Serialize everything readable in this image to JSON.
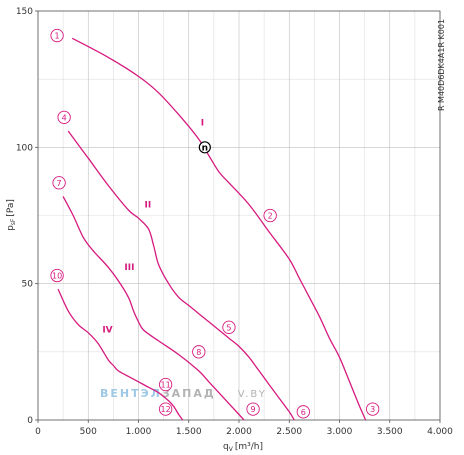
{
  "chart_data": {
    "type": "line",
    "xlabel_main": "q",
    "xlabel_sub": "V",
    "xlabel_unit": "[m³/h]",
    "ylabel_main": "p",
    "ylabel_sub": "sF",
    "ylabel_unit": "[Pa]",
    "xlim": [
      0,
      4000
    ],
    "ylim": [
      0,
      150
    ],
    "x_ticks": [
      0,
      500,
      1000,
      1500,
      2000,
      2500,
      3000,
      3500,
      4000
    ],
    "x_tick_labels": [
      "0",
      "500",
      "1.000",
      "1.500",
      "2.000",
      "2.500",
      "3.000",
      "3.500",
      "4.000"
    ],
    "y_ticks": [
      0,
      50,
      100,
      150
    ],
    "y_tick_labels": [
      "0",
      "50",
      "100",
      "150"
    ],
    "grid": true,
    "model_code": "R M40D6DK4A1R K001",
    "watermark": {
      "part1": "ВЕНТЭЛ",
      "part2": "ЗАПАД",
      "part3": "V.BY",
      "color1": "#9ec9e6",
      "color2": "#b3b3b3"
    },
    "curve_color": "#d61a7f",
    "series": [
      {
        "label": "I",
        "label_at": [
          1620,
          108
        ],
        "x": [
          340,
          700,
          1000,
          1200,
          1400,
          1600,
          1700,
          1800,
          1900,
          2100,
          2300,
          2500,
          2600,
          2700,
          2800,
          2900,
          3000,
          3100,
          3200,
          3260
        ],
        "y": [
          140,
          133,
          126,
          120,
          112,
          103,
          97,
          91,
          87,
          79,
          69,
          59,
          52,
          45,
          38,
          30,
          23,
          14,
          5,
          0
        ]
      },
      {
        "label": "II",
        "label_at": [
          1060,
          78
        ],
        "x": [
          300,
          500,
          700,
          900,
          1000,
          1100,
          1150,
          1200,
          1300,
          1400,
          1500,
          1600,
          1700,
          1800,
          1900,
          2000,
          2100,
          2200,
          2300,
          2400,
          2500,
          2550
        ],
        "y": [
          106,
          96,
          86,
          77,
          74,
          70,
          64,
          57,
          50,
          45,
          42,
          39,
          36,
          33,
          30,
          27,
          23,
          18,
          13,
          8,
          3,
          0
        ]
      },
      {
        "label": "III",
        "label_at": [
          860,
          55
        ],
        "x": [
          250,
          350,
          450,
          550,
          700,
          800,
          900,
          950,
          1000,
          1050,
          1200,
          1400,
          1600,
          1700,
          1800,
          1900,
          2000,
          2050
        ],
        "y": [
          82,
          75,
          67,
          62,
          56,
          51,
          45,
          40,
          36,
          33,
          29,
          24,
          18,
          14,
          10,
          6,
          2,
          0
        ]
      },
      {
        "label": "IV",
        "label_at": [
          640,
          32
        ],
        "x": [
          200,
          300,
          400,
          500,
          600,
          700,
          750,
          800,
          900,
          1000,
          1100,
          1200,
          1300,
          1350,
          1400,
          1440
        ],
        "y": [
          48,
          40,
          35,
          32,
          28,
          22,
          20,
          18,
          16,
          14,
          12,
          10,
          7,
          5,
          2,
          0
        ]
      }
    ],
    "markers": [
      {
        "label": "1",
        "x": 190,
        "y": 141
      },
      {
        "label": "2",
        "x": 2310,
        "y": 75
      },
      {
        "label": "3",
        "x": 3330,
        "y": 4
      },
      {
        "label": "4",
        "x": 260,
        "y": 111
      },
      {
        "label": "5",
        "x": 1900,
        "y": 34
      },
      {
        "label": "6",
        "x": 2640,
        "y": 3
      },
      {
        "label": "7",
        "x": 210,
        "y": 87
      },
      {
        "label": "8",
        "x": 1600,
        "y": 25
      },
      {
        "label": "9",
        "x": 2140,
        "y": 4
      },
      {
        "label": "10",
        "x": 190,
        "y": 53
      },
      {
        "label": "11",
        "x": 1270,
        "y": 13
      },
      {
        "label": "12",
        "x": 1270,
        "y": 4
      }
    ],
    "operating_point": {
      "label": "n",
      "x": 1660,
      "y": 100
    }
  }
}
